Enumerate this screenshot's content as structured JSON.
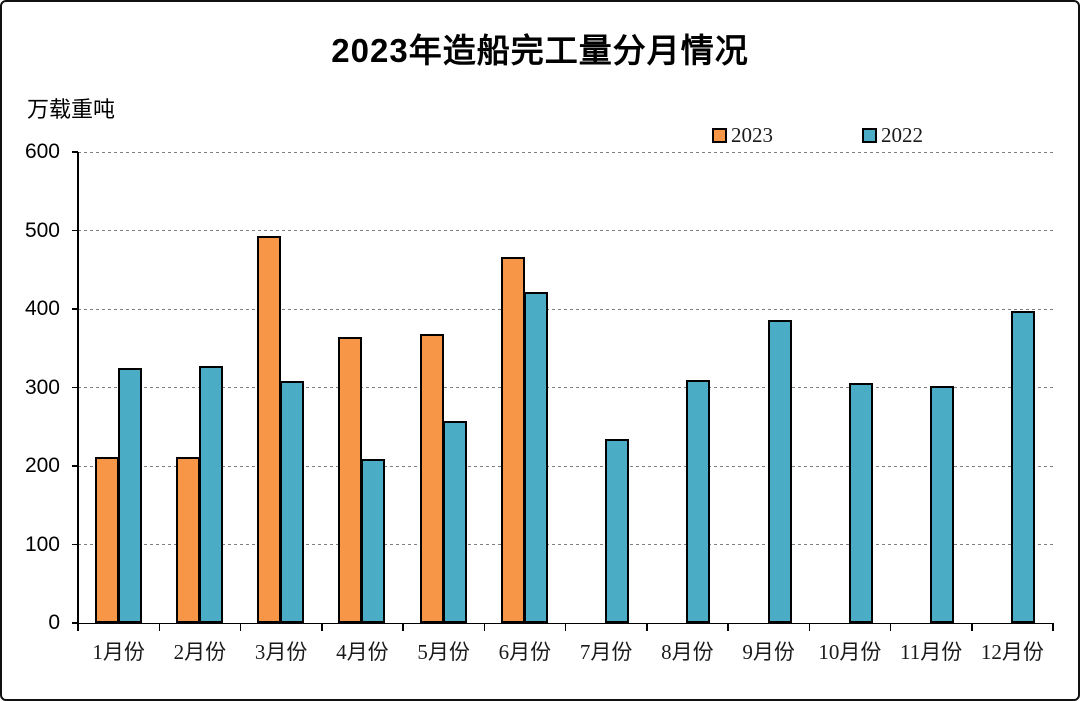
{
  "title": "2023年造船完工量分月情况",
  "unit_label": "万载重吨",
  "legend": [
    {
      "label": "2023",
      "color": "#F79646"
    },
    {
      "label": "2022",
      "color": "#4BACC6"
    }
  ],
  "colors": {
    "bar_2023": "#F79646",
    "bar_2022": "#4BACC6",
    "bar_border": "#000000",
    "gridline": "#808080",
    "axis": "#000000"
  },
  "chart_data": {
    "type": "bar",
    "title": "2023年造船完工量分月情况",
    "ylabel": "万载重吨",
    "xlabel": "",
    "categories": [
      "1月份",
      "2月份",
      "3月份",
      "4月份",
      "5月份",
      "6月份",
      "7月份",
      "8月份",
      "9月份",
      "10月份",
      "11月份",
      "12月份"
    ],
    "series": [
      {
        "name": "2023",
        "color": "#F79646",
        "values": [
          211,
          211,
          493,
          364,
          368,
          466,
          null,
          null,
          null,
          null,
          null,
          null
        ]
      },
      {
        "name": "2022",
        "color": "#4BACC6",
        "values": [
          325,
          327,
          308,
          209,
          257,
          422,
          234,
          309,
          386,
          306,
          302,
          397
        ]
      }
    ],
    "ylim": [
      0,
      600
    ],
    "ytick_interval": 100,
    "grid": "horizontal-dashed",
    "legend_position": "top-right"
  }
}
